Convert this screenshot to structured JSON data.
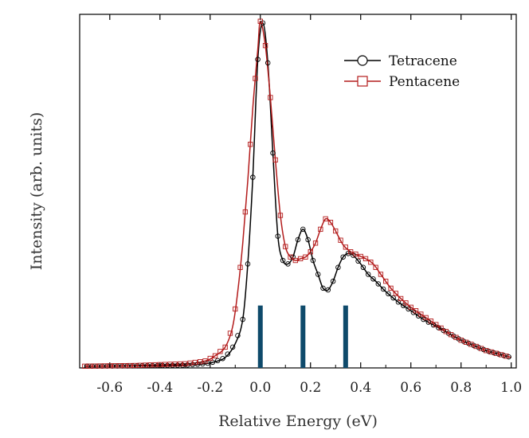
{
  "chart_data": {
    "type": "line",
    "title": "",
    "xlabel": "Relative Energy  (eV)",
    "ylabel": "Intensity  (arb. units)",
    "xlim": [
      -0.72,
      1.02
    ],
    "ylim": [
      0,
      1.02
    ],
    "x_ticks": [
      -0.6,
      -0.4,
      -0.2,
      0.0,
      0.2,
      0.4,
      0.6,
      0.8,
      1.0
    ],
    "x_tick_labels": [
      "-0.6",
      "-0.4",
      "-0.2",
      "0.0",
      "0.2",
      "0.4",
      "0.6",
      "0.8",
      "1.0"
    ],
    "y_tick_labels_shown": false,
    "grid": false,
    "legend_position": "top-right",
    "series": [
      {
        "name": "Tetracene",
        "color": "#000000",
        "marker": "circle",
        "points": [
          [
            -0.7,
            0.005
          ],
          [
            -0.5,
            0.006
          ],
          [
            -0.3,
            0.008
          ],
          [
            -0.22,
            0.012
          ],
          [
            -0.18,
            0.018
          ],
          [
            -0.14,
            0.03
          ],
          [
            -0.1,
            0.07
          ],
          [
            -0.07,
            0.14
          ],
          [
            -0.05,
            0.3
          ],
          [
            -0.03,
            0.55
          ],
          [
            -0.01,
            0.89
          ],
          [
            0.01,
            0.995
          ],
          [
            0.03,
            0.88
          ],
          [
            0.05,
            0.62
          ],
          [
            0.07,
            0.38
          ],
          [
            0.09,
            0.31
          ],
          [
            0.11,
            0.3
          ],
          [
            0.13,
            0.32
          ],
          [
            0.15,
            0.37
          ],
          [
            0.17,
            0.4
          ],
          [
            0.19,
            0.37
          ],
          [
            0.21,
            0.31
          ],
          [
            0.23,
            0.27
          ],
          [
            0.25,
            0.23
          ],
          [
            0.27,
            0.225
          ],
          [
            0.29,
            0.25
          ],
          [
            0.31,
            0.29
          ],
          [
            0.33,
            0.32
          ],
          [
            0.35,
            0.33
          ],
          [
            0.37,
            0.325
          ],
          [
            0.4,
            0.3
          ],
          [
            0.43,
            0.27
          ],
          [
            0.46,
            0.25
          ],
          [
            0.5,
            0.22
          ],
          [
            0.55,
            0.19
          ],
          [
            0.6,
            0.165
          ],
          [
            0.65,
            0.14
          ],
          [
            0.7,
            0.12
          ],
          [
            0.75,
            0.1
          ],
          [
            0.8,
            0.08
          ],
          [
            0.85,
            0.065
          ],
          [
            0.9,
            0.05
          ],
          [
            0.95,
            0.04
          ],
          [
            1.0,
            0.03
          ]
        ]
      },
      {
        "name": "Pentacene",
        "color": "#b31b1b",
        "marker": "square",
        "points": [
          [
            -0.7,
            0.005
          ],
          [
            -0.5,
            0.007
          ],
          [
            -0.3,
            0.012
          ],
          [
            -0.22,
            0.02
          ],
          [
            -0.18,
            0.035
          ],
          [
            -0.14,
            0.06
          ],
          [
            -0.11,
            0.12
          ],
          [
            -0.09,
            0.22
          ],
          [
            -0.07,
            0.36
          ],
          [
            -0.05,
            0.54
          ],
          [
            -0.03,
            0.75
          ],
          [
            -0.01,
            0.92
          ],
          [
            0.0,
            1.0
          ],
          [
            0.02,
            0.93
          ],
          [
            0.04,
            0.78
          ],
          [
            0.06,
            0.6
          ],
          [
            0.08,
            0.44
          ],
          [
            0.1,
            0.35
          ],
          [
            0.12,
            0.32
          ],
          [
            0.14,
            0.31
          ],
          [
            0.16,
            0.315
          ],
          [
            0.18,
            0.32
          ],
          [
            0.2,
            0.335
          ],
          [
            0.22,
            0.36
          ],
          [
            0.24,
            0.4
          ],
          [
            0.26,
            0.43
          ],
          [
            0.28,
            0.42
          ],
          [
            0.3,
            0.395
          ],
          [
            0.33,
            0.355
          ],
          [
            0.36,
            0.335
          ],
          [
            0.39,
            0.325
          ],
          [
            0.42,
            0.315
          ],
          [
            0.45,
            0.3
          ],
          [
            0.48,
            0.27
          ],
          [
            0.52,
            0.23
          ],
          [
            0.56,
            0.2
          ],
          [
            0.6,
            0.175
          ],
          [
            0.65,
            0.15
          ],
          [
            0.7,
            0.125
          ],
          [
            0.75,
            0.1
          ],
          [
            0.8,
            0.08
          ],
          [
            0.85,
            0.065
          ],
          [
            0.9,
            0.05
          ],
          [
            0.95,
            0.04
          ],
          [
            1.0,
            0.03
          ]
        ]
      }
    ],
    "markers": {
      "color": "#0e4a6b",
      "positions": [
        0.0,
        0.17,
        0.34
      ],
      "height": 0.18
    }
  }
}
